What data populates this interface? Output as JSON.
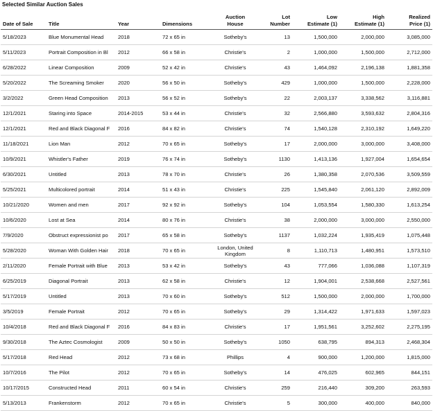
{
  "header": {
    "title": "Selected Similar Auction Sales"
  },
  "table": {
    "columns": [
      [
        "Date of Sale"
      ],
      [
        "Title"
      ],
      [
        "Year"
      ],
      [
        "Dimensions"
      ],
      [
        "Auction",
        "House"
      ],
      [
        "Lot",
        "Number"
      ],
      [
        "Low",
        "Estimate (1)"
      ],
      [
        "High",
        "Estimate (1)"
      ],
      [
        "Realized",
        "Price (1)"
      ]
    ],
    "rows": [
      [
        "5/18/2023",
        "Blue Monumental Head",
        "2018",
        "72 x 65 in",
        "Sotheby's",
        "13",
        "1,500,000",
        "2,000,000",
        "3,085,000"
      ],
      [
        "5/11/2023",
        "Portrait Composition in Bl",
        "2012",
        "66 x 58 in",
        "Christie's",
        "2",
        "1,000,000",
        "1,500,000",
        "2,712,000"
      ],
      [
        "6/28/2022",
        "Linear Composition",
        "2009",
        "52 x 42 in",
        "Christie's",
        "43",
        "1,464,092",
        "2,196,138",
        "1,881,358"
      ],
      [
        "5/20/2022",
        "The Screaming Smoker",
        "2020",
        "56 x 50 in",
        "Sotheby's",
        "429",
        "1,000,000",
        "1,500,000",
        "2,228,000"
      ],
      [
        "3/2/2022",
        "Green Head Composition",
        "2013",
        "56 x 52 in",
        "Sotheby's",
        "22",
        "2,003,137",
        "3,338,562",
        "3,116,881"
      ],
      [
        "12/1/2021",
        "Staring into Space",
        "2014-2015",
        "53 x 44 in",
        "Christie's",
        "32",
        "2,566,880",
        "3,593,632",
        "2,804,316"
      ],
      [
        "12/1/2021",
        "Red and Black Diagonal F",
        "2016",
        "84 x 82 in",
        "Christie's",
        "74",
        "1,540,128",
        "2,310,192",
        "1,649,220"
      ],
      [
        "11/18/2021",
        "Lion Man",
        "2012",
        "70 x 65 in",
        "Sotheby's",
        "17",
        "2,000,000",
        "3,000,000",
        "3,408,000"
      ],
      [
        "10/9/2021",
        "Whistler's Father",
        "2019",
        "76 x 74 in",
        "Sotheby's",
        "1130",
        "1,413,136",
        "1,927,004",
        "1,654,654"
      ],
      [
        "6/30/2021",
        "Untitled",
        "2013",
        "78 x 70 in",
        "Christie's",
        "26",
        "1,380,358",
        "2,070,536",
        "3,509,559"
      ],
      [
        "5/25/2021",
        "Multicolored portrait",
        "2014",
        "51 x 43 in",
        "Christie's",
        "225",
        "1,545,840",
        "2,061,120",
        "2,892,009"
      ],
      [
        "10/21/2020",
        "Women and men",
        "2017",
        "92 x 92 in",
        "Sotheby's",
        "104",
        "1,053,554",
        "1,580,330",
        "1,613,254"
      ],
      [
        "10/6/2020",
        "Lost at Sea",
        "2014",
        "80 x 76 in",
        "Christie's",
        "38",
        "2,000,000",
        "3,000,000",
        "2,550,000"
      ],
      [
        "7/9/2020",
        "Obstruct expressionist po",
        "2017",
        "65 x 58 in",
        "Sotheby's",
        "1137",
        "1,032,224",
        "1,935,419",
        "1,075,448"
      ],
      [
        "5/28/2020",
        "Woman With Golden Hair",
        "2018",
        "70 x 65 in",
        "London, United Kingdom",
        "8",
        "1,110,713",
        "1,480,951",
        "1,573,510"
      ],
      [
        "2/11/2020",
        "Female Portrait with Blue",
        "2013",
        "53 x 42 in",
        "Sotheby's",
        "43",
        "777,066",
        "1,036,088",
        "1,107,319"
      ],
      [
        "6/25/2019",
        "Diagonal Portrait",
        "2013",
        "62 x 58 in",
        "Christie's",
        "12",
        "1,904,001",
        "2,538,668",
        "2,527,561"
      ],
      [
        "5/17/2019",
        "Untitled",
        "2013",
        "70 x 60 in",
        "Sotheby's",
        "512",
        "1,500,000",
        "2,000,000",
        "1,700,000"
      ],
      [
        "3/5/2019",
        "Female Portrait",
        "2012",
        "70 x 65 in",
        "Sotheby's",
        "29",
        "1,314,422",
        "1,971,633",
        "1,597,023"
      ],
      [
        "10/4/2018",
        "Red and Black Diagonal F",
        "2016",
        "84 x 83 in",
        "Christie's",
        "17",
        "1,951,561",
        "3,252,602",
        "2,275,195"
      ],
      [
        "9/30/2018",
        "The Aztec Cosmologist",
        "2009",
        "50 x 50 in",
        "Sotheby's",
        "1050",
        "638,795",
        "894,313",
        "2,468,304"
      ],
      [
        "5/17/2018",
        "Red Head",
        "2012",
        "73 x 68 in",
        "Phillips",
        "4",
        "900,000",
        "1,200,000",
        "1,815,000"
      ],
      [
        "10/7/2016",
        "The Pilot",
        "2012",
        "70 x 65 in",
        "Sotheby's",
        "14",
        "476,025",
        "602,965",
        "844,151"
      ],
      [
        "10/17/2015",
        "Constructed Head",
        "2011",
        "60 x 54 in",
        "Christie's",
        "259",
        "216,440",
        "309,200",
        "263,593"
      ],
      [
        "5/13/2013",
        "Frankenstorm",
        "2012",
        "70 x 65 in",
        "Christie's",
        "5",
        "300,000",
        "400,000",
        "840,000"
      ]
    ]
  }
}
